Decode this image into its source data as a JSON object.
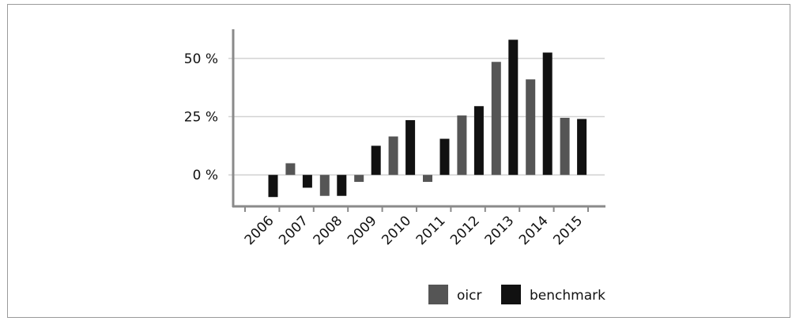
{
  "chart_data": {
    "type": "bar",
    "categories": [
      "2006",
      "2007",
      "2008",
      "2009",
      "2010",
      "2011",
      "2012",
      "2013",
      "2014",
      "2015"
    ],
    "series": [
      {
        "name": "oicr",
        "color": "#555555",
        "values": [
          0,
          5,
          -9,
          -3,
          16.5,
          -3,
          25.5,
          48.5,
          41,
          24.5
        ]
      },
      {
        "name": "benchmark",
        "color": "#111111",
        "values": [
          -9.5,
          -5.5,
          -9,
          12.5,
          23.5,
          15.5,
          29.5,
          58,
          52.5,
          24
        ]
      }
    ],
    "yticks": [
      {
        "value": 0,
        "label": "0 %"
      },
      {
        "value": 25,
        "label": "25 %"
      },
      {
        "value": 50,
        "label": "50 %"
      }
    ],
    "ylim": [
      -13.5,
      62.5
    ],
    "grid": true,
    "legend_position": "bottom-right",
    "title": "",
    "xlabel": "",
    "ylabel": ""
  }
}
